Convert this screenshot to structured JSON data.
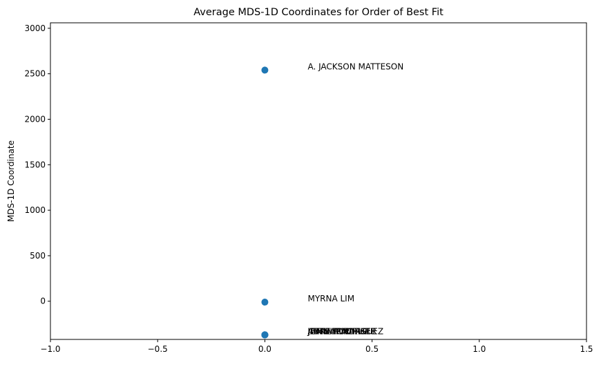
{
  "chart_data": {
    "type": "scatter",
    "title": "Average MDS-1D Coordinates for Order of Best Fit",
    "xlabel": "",
    "ylabel": "MDS-1D Coordinate",
    "xlim": [
      -1.0,
      1.5
    ],
    "ylim": [
      -420,
      3060
    ],
    "xticks": [
      -1.0,
      -0.5,
      0.0,
      0.5,
      1.0,
      1.5
    ],
    "xtick_labels": [
      "−1.0",
      "−0.5",
      "0.0",
      "0.5",
      "1.0",
      "1.5"
    ],
    "yticks": [
      0,
      500,
      1000,
      1500,
      2000,
      2500,
      3000
    ],
    "ytick_labels": [
      "0",
      "500",
      "1000",
      "1500",
      "2000",
      "2500",
      "3000"
    ],
    "grid": false,
    "marker_color": "#1f77b4",
    "series": [
      {
        "points": [
          {
            "x": 0.0,
            "y": 2540,
            "label": "A. JACKSON MATTESON"
          },
          {
            "x": 0.0,
            "y": -10,
            "label": "MYRNA LIM"
          },
          {
            "x": 0.0,
            "y": -370,
            "label": "JOHN FORD"
          },
          {
            "x": 0.0,
            "y": -370,
            "label": "ANNA MACIAS"
          },
          {
            "x": 0.0,
            "y": -370,
            "label": "ARTHUR PARKER"
          },
          {
            "x": 0.0,
            "y": -370,
            "label": "JEAN ARMATURE"
          },
          {
            "x": 0.0,
            "y": -370,
            "label": "JAMIE RODRIGUEZ"
          }
        ]
      }
    ]
  }
}
